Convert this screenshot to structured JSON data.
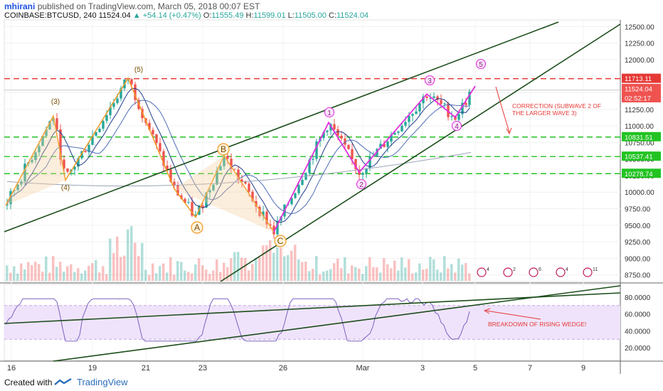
{
  "header": {
    "author": "mhirani",
    "published": "published on TradingView.com, March 05, 2018 00:07 EST",
    "symbol": "COINBASE:BTCUSD, 240",
    "last": "11524.04",
    "change": "▲ +54.14 (+0.47%)",
    "open_label": "O:",
    "open": "11555.49",
    "high_label": "H:",
    "high": "11599.01",
    "low_label": "L:",
    "low": "11505.00",
    "close_label": "C:",
    "close": "11524.04"
  },
  "footer": {
    "created_with": "Created with",
    "brand": "TradingView"
  },
  "colors": {
    "up": "#26a69a",
    "down": "#ef5350",
    "resistance": "#e53935",
    "support": "#22c322",
    "wedge": "#1b4d1b",
    "wave_abc": "#f09a22",
    "wave_impulse": "#e02ee0",
    "rsi": "#7b5fbf",
    "rsi_band": "#efe3fb"
  },
  "chart_data": {
    "type": "candlestick",
    "price_axis": {
      "ticks": [
        "12500.00",
        "12250.00",
        "12000.00",
        "11750.00",
        "11500.00",
        "11250.00",
        "11000.00",
        "10750.00",
        "10500.00",
        "10250.00",
        "10000.00",
        "9750.00",
        "9500.00",
        "9250.00",
        "9000.00",
        "8750.00"
      ],
      "range": [
        8650,
        12600
      ]
    },
    "time_axis": {
      "ticks": [
        "16",
        "19",
        "21",
        "23",
        "26",
        "Mar",
        "3",
        "5",
        "7",
        "9"
      ]
    },
    "price_labels": [
      {
        "value": "11713.11",
        "kind": "resistance"
      },
      {
        "value": "11524.04",
        "kind": "last"
      },
      {
        "value": "02:52:17",
        "kind": "timer"
      },
      {
        "value": "10831.51",
        "kind": "support"
      },
      {
        "value": "10537.41",
        "kind": "support"
      },
      {
        "value": "10278.74",
        "kind": "support"
      }
    ],
    "wave_labels": {
      "abc": [
        "(3)",
        "(4)",
        "(5)",
        "A",
        "B",
        "C"
      ],
      "impulse": [
        "1",
        "2",
        "3",
        "4",
        "5"
      ]
    },
    "annotations": [
      "CORRECTION (SUBWAVE 2 OF",
      "THE LARGER WAVE 3)",
      "BREAKDOWN OF RISING WEDGE!"
    ],
    "event_counts": [
      "4",
      "2",
      "6",
      "4",
      "11"
    ],
    "rsi": {
      "ticks": [
        "80.0000",
        "60.0000",
        "40.0000",
        "20.0000"
      ],
      "band": [
        30,
        70
      ],
      "range": [
        5,
        95
      ]
    }
  }
}
